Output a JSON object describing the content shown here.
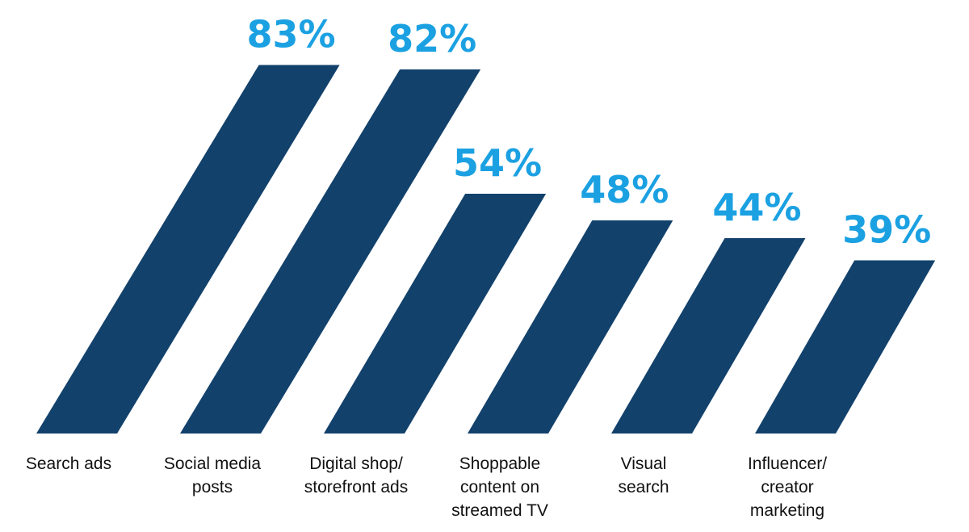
{
  "chart_data": {
    "type": "bar",
    "categories": [
      [
        "Search ads"
      ],
      [
        "Social media",
        "posts"
      ],
      [
        "Digital shop/",
        "storefront ads"
      ],
      [
        "Shoppable",
        "content on",
        "streamed TV"
      ],
      [
        "Visual",
        "search"
      ],
      [
        "Influencer/",
        "creator",
        "marketing"
      ]
    ],
    "values": [
      83,
      82,
      54,
      48,
      44,
      39
    ],
    "value_labels": [
      "83%",
      "82%",
      "54%",
      "48%",
      "44%",
      "39%"
    ],
    "color": "#12416b"
  }
}
